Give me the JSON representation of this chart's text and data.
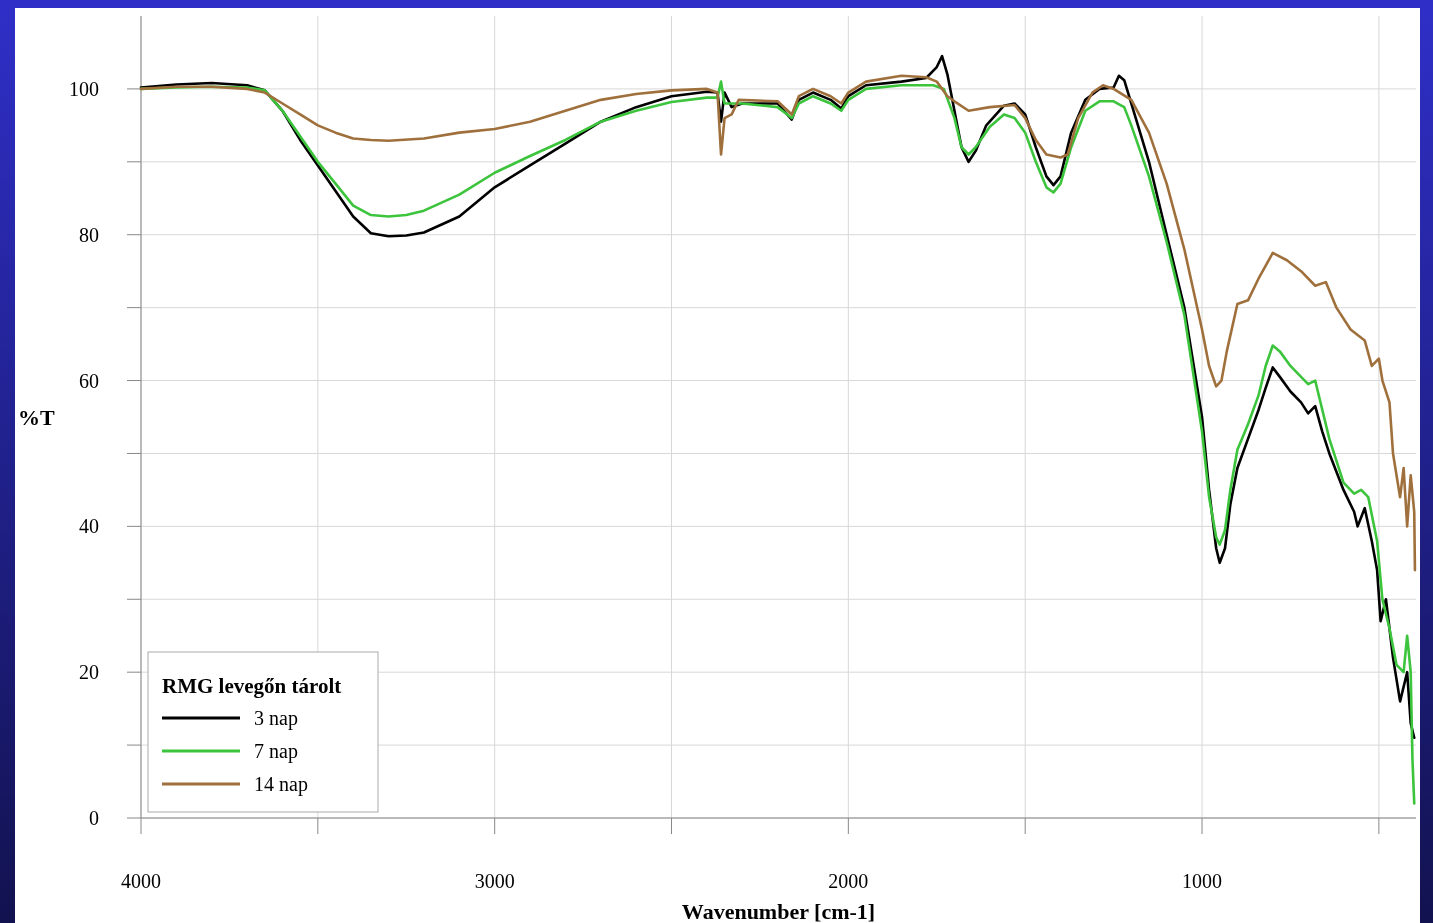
{
  "chart_data": {
    "type": "line",
    "xlabel": "Wavenumber [cm-1]",
    "ylabel": "%T",
    "legend_title": "RMG levegőn tárolt",
    "legend": "bottom left",
    "grid": true,
    "marker": "none",
    "line_style": "solid",
    "xlim": [
      4000,
      395
    ],
    "xticks": [
      4000,
      {
        "value": 3500,
        "label": null
      },
      3000,
      {
        "value": 2500,
        "label": null
      },
      2000,
      {
        "value": 1500,
        "label": null
      },
      1000,
      {
        "value": 500,
        "label": null
      }
    ],
    "ylim": [
      0,
      110
    ],
    "yticks": [
      0,
      {
        "value": 10,
        "label": null
      },
      20,
      {
        "value": 30,
        "label": null
      },
      40,
      {
        "value": 50,
        "label": null
      },
      60,
      {
        "value": 70,
        "label": null
      },
      80,
      {
        "value": 90,
        "label": null
      },
      100
    ],
    "series": [
      {
        "name": "3 nap",
        "color": "#000000",
        "x": [
          4000,
          3900,
          3800,
          3700,
          3650,
          3600,
          3550,
          3500,
          3450,
          3400,
          3350,
          3300,
          3250,
          3200,
          3100,
          3000,
          2900,
          2800,
          2700,
          2600,
          2500,
          2400,
          2370,
          2360,
          2350,
          2330,
          2300,
          2200,
          2160,
          2140,
          2100,
          2050,
          2020,
          2000,
          1950,
          1850,
          1780,
          1750,
          1735,
          1720,
          1700,
          1680,
          1660,
          1640,
          1610,
          1560,
          1530,
          1500,
          1470,
          1440,
          1420,
          1400,
          1370,
          1330,
          1290,
          1250,
          1235,
          1220,
          1200,
          1150,
          1100,
          1050,
          1000,
          980,
          960,
          950,
          935,
          920,
          900,
          870,
          840,
          820,
          800,
          780,
          750,
          720,
          700,
          680,
          660,
          640,
          600,
          570,
          560,
          540,
          520,
          505,
          495,
          480,
          460,
          440,
          420,
          410,
          400
        ],
        "values": [
          100.2,
          100.6,
          100.8,
          100.5,
          99.8,
          97,
          93,
          89.5,
          86,
          82.5,
          80.2,
          79.8,
          79.9,
          80.3,
          82.5,
          86.5,
          89.5,
          92.5,
          95.5,
          97.5,
          99,
          99.6,
          99.5,
          95.5,
          99.5,
          97.5,
          98,
          98,
          95.8,
          98.5,
          99.5,
          98.5,
          97.3,
          99,
          100.5,
          101,
          101.5,
          103,
          104.5,
          102,
          97,
          92,
          90,
          91.5,
          95,
          97.7,
          98,
          96.5,
          92,
          88,
          86.8,
          88,
          94,
          98.5,
          100,
          100.2,
          101.8,
          101.2,
          98,
          90,
          80,
          70,
          55,
          45,
          37,
          35,
          37,
          43,
          48,
          52,
          56,
          59,
          61.8,
          60.5,
          58.5,
          57,
          55.5,
          56.5,
          53,
          50,
          45,
          42,
          40,
          42.5,
          38,
          34,
          27,
          30,
          22,
          16,
          20,
          13,
          11
        ]
      },
      {
        "name": "7 nap",
        "color": "#3cc43c",
        "x": [
          4000,
          3900,
          3800,
          3700,
          3650,
          3600,
          3550,
          3500,
          3450,
          3400,
          3350,
          3300,
          3250,
          3200,
          3100,
          3000,
          2900,
          2800,
          2700,
          2600,
          2500,
          2400,
          2370,
          2360,
          2350,
          2300,
          2200,
          2160,
          2140,
          2100,
          2050,
          2020,
          2000,
          1950,
          1850,
          1760,
          1730,
          1700,
          1680,
          1660,
          1640,
          1600,
          1560,
          1530,
          1500,
          1470,
          1440,
          1420,
          1400,
          1370,
          1330,
          1290,
          1250,
          1220,
          1200,
          1150,
          1100,
          1050,
          1000,
          980,
          960,
          950,
          935,
          920,
          900,
          870,
          840,
          820,
          800,
          780,
          750,
          720,
          700,
          680,
          660,
          640,
          600,
          570,
          550,
          530,
          505,
          490,
          470,
          450,
          430,
          420,
          410,
          405,
          400
        ],
        "values": [
          100,
          100.2,
          100.3,
          100.2,
          99.8,
          97,
          93.5,
          90,
          87,
          84,
          82.7,
          82.5,
          82.7,
          83.3,
          85.5,
          88.5,
          90.8,
          93,
          95.5,
          97,
          98.2,
          98.8,
          98.8,
          101,
          98,
          98,
          97.5,
          96,
          98,
          99,
          98,
          97,
          98.5,
          100,
          100.5,
          100.5,
          100,
          96,
          92,
          91,
          92,
          94.8,
          96.5,
          96,
          94,
          90,
          86.5,
          85.8,
          87,
          92,
          97,
          98.3,
          98.3,
          97.5,
          95,
          88,
          79,
          69,
          53,
          44,
          38.5,
          37.5,
          39.5,
          45,
          50.5,
          54,
          58,
          62,
          64.8,
          64,
          62,
          60.5,
          59.5,
          60,
          56,
          52,
          46,
          44.5,
          45,
          44,
          38,
          30,
          26,
          21,
          20,
          25,
          20,
          8,
          2
        ]
      },
      {
        "name": "14 nap",
        "color": "#a0703c",
        "x": [
          4000,
          3900,
          3800,
          3700,
          3650,
          3600,
          3550,
          3500,
          3450,
          3400,
          3350,
          3300,
          3200,
          3100,
          3000,
          2900,
          2800,
          2700,
          2600,
          2500,
          2400,
          2370,
          2360,
          2350,
          2330,
          2310,
          2200,
          2160,
          2140,
          2100,
          2050,
          2020,
          2000,
          1950,
          1850,
          1780,
          1750,
          1720,
          1700,
          1660,
          1600,
          1530,
          1500,
          1470,
          1440,
          1400,
          1380,
          1350,
          1310,
          1280,
          1250,
          1200,
          1150,
          1100,
          1050,
          1000,
          980,
          960,
          945,
          930,
          900,
          870,
          840,
          800,
          760,
          720,
          680,
          650,
          620,
          580,
          540,
          520,
          500,
          490,
          470,
          460,
          440,
          430,
          420,
          410,
          400,
          398
        ],
        "values": [
          100,
          100.3,
          100.3,
          100,
          99.5,
          98,
          96.5,
          95,
          94,
          93.2,
          93,
          92.9,
          93.2,
          94,
          94.5,
          95.5,
          97,
          98.5,
          99.3,
          99.8,
          100,
          99.5,
          91,
          96,
          96.5,
          98.5,
          98.3,
          96.5,
          99,
          100,
          99,
          98,
          99.5,
          101,
          101.8,
          101.6,
          101,
          99,
          98.3,
          97,
          97.5,
          97.8,
          96,
          93,
          91,
          90.6,
          91,
          96,
          99.5,
          100.5,
          100,
          98.5,
          94,
          87,
          78,
          67,
          62,
          59.2,
          60,
          64,
          70.5,
          71,
          74,
          77.5,
          76.5,
          75,
          73,
          73.5,
          70,
          67,
          65.5,
          62,
          63,
          60,
          57,
          50,
          44,
          48,
          40,
          47,
          42,
          34
        ]
      }
    ]
  }
}
